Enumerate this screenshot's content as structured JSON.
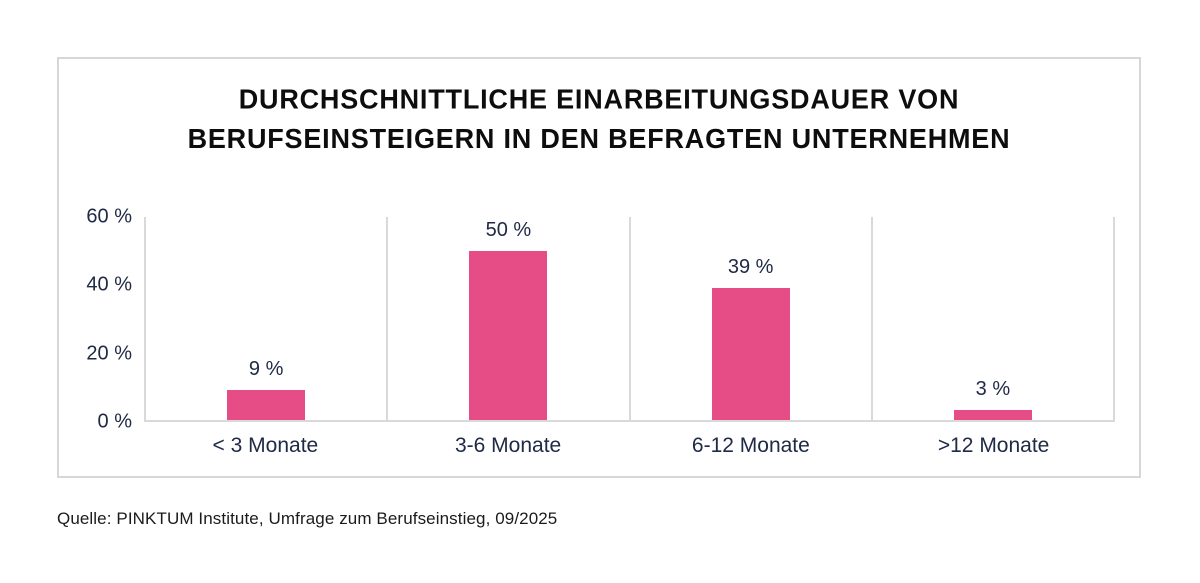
{
  "title": {
    "line1": "DURCHSCHNITTLICHE EINARBEITUNGSDAUER VON",
    "line2": "BERUFSEINSTEIGERN IN DEN BEFRAGTEN UNTERNEHMEN"
  },
  "source": "Quelle: PINKTUM Institute, Umfrage zum Berufseinstieg, 09/2025",
  "colors": {
    "bar": "#E64D86",
    "label_text": "#202A46",
    "grid": "#D9D9D9",
    "panel_border": "#D7D7D7",
    "title_text": "#0D0D0D"
  },
  "chart_data": {
    "type": "bar",
    "title": "Durchschnittliche Einarbeitungsdauer von Berufseinsteigern in den befragten Unternehmen",
    "categories": [
      "< 3 Monate",
      "3-6 Monate",
      "6-12 Monate",
      ">12 Monate"
    ],
    "values": [
      9,
      50,
      39,
      3
    ],
    "value_labels": [
      "9 %",
      "50 %",
      "39 %",
      "3 %"
    ],
    "xlabel": "",
    "ylabel": "",
    "ylim": [
      0,
      60
    ],
    "yticks": [
      0,
      20,
      40,
      60
    ],
    "ytick_labels": [
      "0 %",
      "20 %",
      "40 %",
      "60 %"
    ],
    "bar_color": "#E64D86",
    "grid": "vertical separators between categories, baseline only, no horizontal gridlines",
    "legend": "none"
  }
}
